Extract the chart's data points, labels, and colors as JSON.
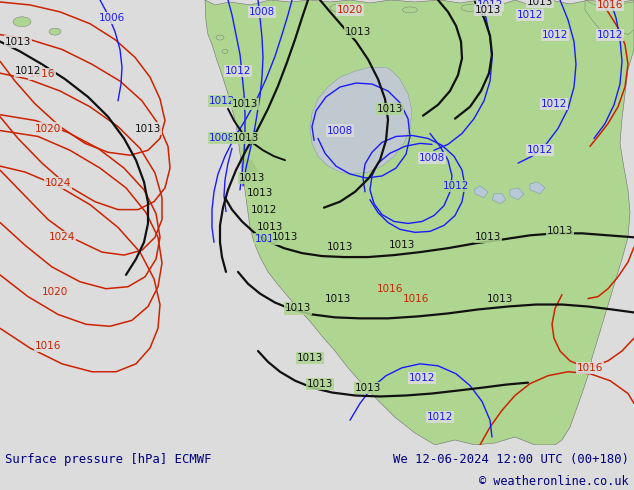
{
  "title_left": "Surface pressure [hPa] ECMWF",
  "title_right": "We 12-06-2024 12:00 UTC (00+180)",
  "copyright": "© weatheronline.co.uk",
  "bg_color": "#dcdcdc",
  "land_color": "#aed691",
  "ocean_color": "#dcdcdc",
  "gray_land_color": "#b0b0b0",
  "fig_width": 6.34,
  "fig_height": 4.9,
  "dpi": 100,
  "bottom_bar_color": "#c8c8c8",
  "title_color": "#000080",
  "copyright_color": "#000080"
}
